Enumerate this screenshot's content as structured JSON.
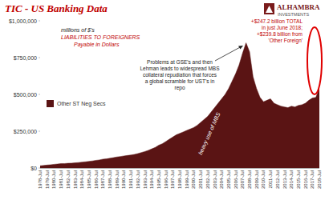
{
  "chart_data": {
    "type": "area",
    "title": "TIC - US Banking Data",
    "header_notes": [
      "millions of $'s",
      "LIABILITIES TO FOREIGNERS",
      "Payable in Dollars"
    ],
    "logo": {
      "name": "ALHAMBRA",
      "tagline": "INVESTMENTS"
    },
    "annotations": [
      {
        "lines": [
          "Problems at GSE's and then",
          "Lehman leads to widespread MBS",
          "collateral repudiation that forces",
          "a global scramble for UST's in",
          "repo"
        ]
      },
      {
        "lines": [
          "heavy use of MBS"
        ]
      },
      {
        "lines": [
          "+$247.2 billion TOTAL",
          "in just June 2018;",
          "+$239.8 billion from",
          "'Other Foreign'"
        ]
      }
    ],
    "categories": [
      "1978-Jul",
      null,
      "1979-Jul",
      null,
      "1980-Jul",
      null,
      "1981-Jul",
      null,
      "1982-Jul",
      null,
      "1983-Jul",
      null,
      "1984-Jul",
      null,
      "1985-Jul",
      null,
      "1986-Jul",
      null,
      "1987-Jul",
      null,
      "1988-Jul",
      null,
      "1989-Jul",
      null,
      "1990-Jul",
      null,
      "1991-Jul",
      null,
      "1992-Jul",
      null,
      "1993-Jul",
      null,
      "1994-Jul",
      null,
      "1995-Jul",
      null,
      "1996-Jul",
      null,
      "1997-Jul",
      null,
      "1998-Jul",
      null,
      "1999-Jul",
      null,
      "2000-Jul",
      null,
      "2001-Jul",
      null,
      "2002-Jul",
      null,
      "2003-Jul",
      null,
      "2004-Jul",
      null,
      "2005-Jul",
      null,
      "2006-Jul",
      null,
      "2007-Jul",
      null,
      "2008-Jul",
      null,
      "2009-Jul",
      null,
      "2010-Jul",
      null,
      "2011-Jul",
      null,
      "2012-Jul",
      null,
      "2013-Jul",
      null,
      "2014-Jul",
      null,
      "2015-Jul",
      null,
      "2016-Jul",
      null,
      "2017-Jul",
      null,
      "2018-Jul"
    ],
    "series": [
      {
        "name": "Other ST Neg Secs",
        "color": "#5a1414",
        "values": [
          15000,
          17000,
          20000,
          22000,
          25000,
          27000,
          30000,
          30000,
          32000,
          33000,
          35000,
          37000,
          40000,
          42000,
          45000,
          48000,
          52000,
          55000,
          60000,
          62000,
          66000,
          70000,
          75000,
          78000,
          82000,
          85000,
          88000,
          92000,
          98000,
          105000,
          112000,
          120000,
          130000,
          140000,
          155000,
          165000,
          180000,
          195000,
          210000,
          225000,
          235000,
          245000,
          255000,
          265000,
          275000,
          290000,
          310000,
          330000,
          350000,
          380000,
          410000,
          440000,
          470000,
          500000,
          540000,
          590000,
          640000,
          700000,
          780000,
          850000,
          790000,
          620000,
          540000,
          480000,
          450000,
          460000,
          470000,
          440000,
          430000,
          420000,
          415000,
          410000,
          420000,
          415000,
          425000,
          430000,
          440000,
          460000,
          475000,
          480000,
          540000
        ]
      }
    ],
    "ylim": [
      0,
      1000000
    ],
    "yticks": [
      {
        "value": 0,
        "label": "$0"
      },
      {
        "value": 250000,
        "label": "$250,000"
      },
      {
        "value": 500000,
        "label": "$500,000"
      },
      {
        "value": 750000,
        "label": "$750,000"
      },
      {
        "value": 1000000,
        "label": "$1,000,000"
      }
    ],
    "grid": false,
    "legend": "left"
  }
}
